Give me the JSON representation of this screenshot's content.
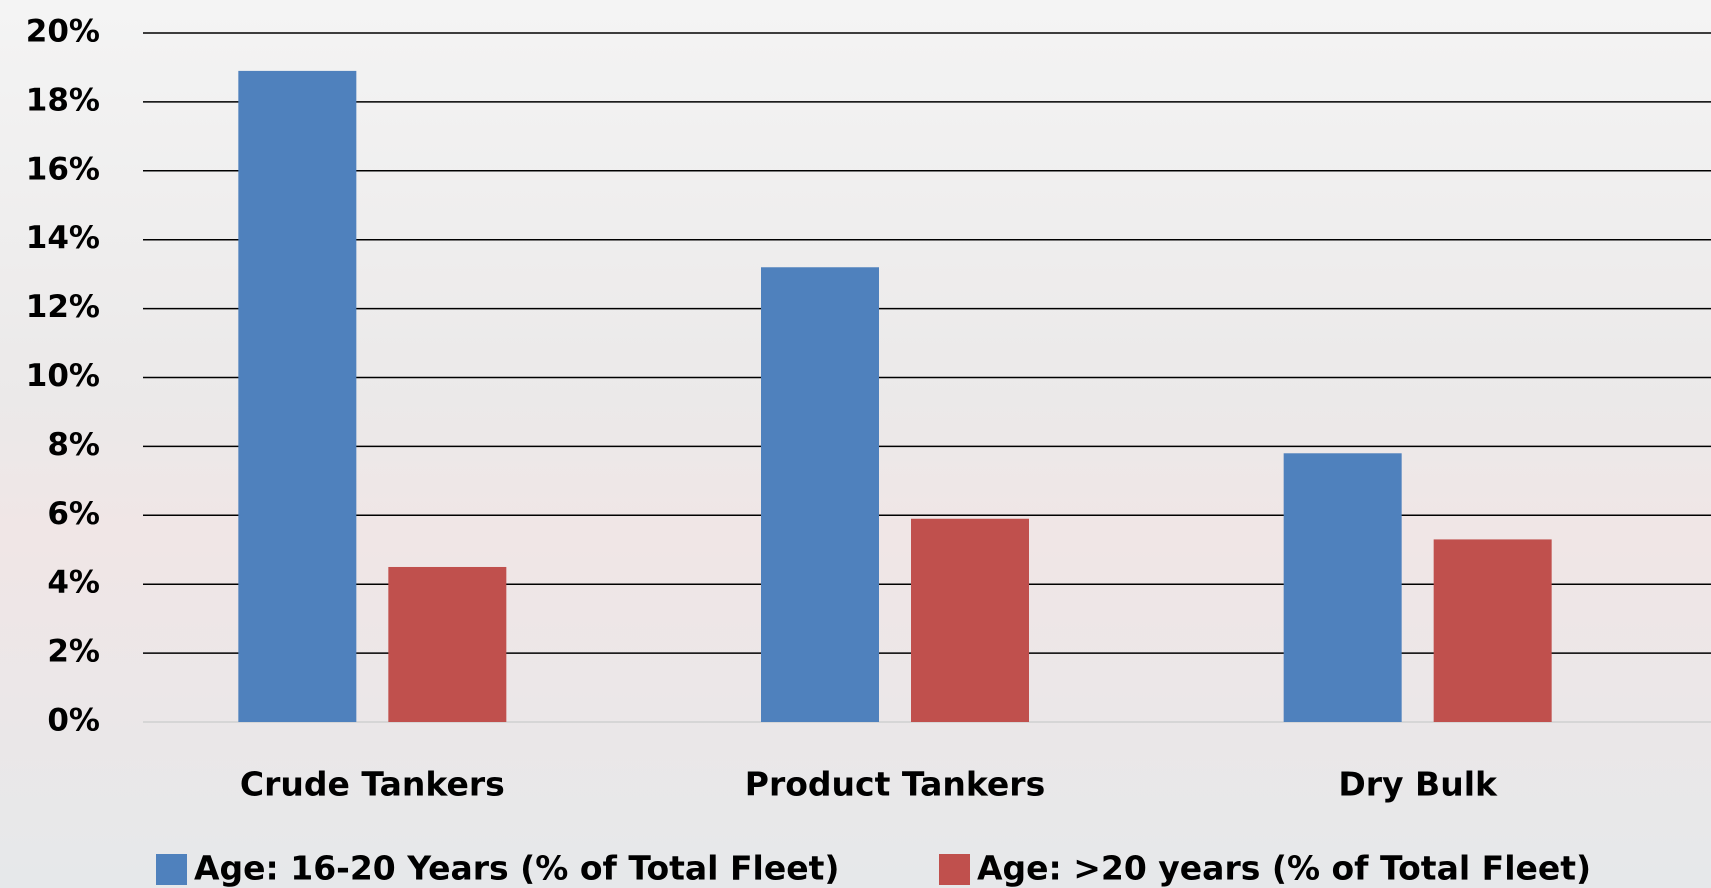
{
  "chart_data": {
    "type": "bar",
    "categories": [
      "Crude Tankers",
      "Product Tankers",
      "Dry Bulk"
    ],
    "series": [
      {
        "name": "Age: 16-20 Years (% of Total Fleet)",
        "color": "#4f81bd",
        "values": [
          18.9,
          13.2,
          7.8
        ]
      },
      {
        "name": "Age: >20 years (% of Total Fleet)",
        "color": "#c0504d",
        "values": [
          4.5,
          5.9,
          5.3
        ]
      }
    ],
    "ylim": [
      0,
      20
    ],
    "yticks": [
      {
        "value": 0,
        "label": "0%"
      },
      {
        "value": 2,
        "label": "2%"
      },
      {
        "value": 4,
        "label": "4%"
      },
      {
        "value": 6,
        "label": "6%"
      },
      {
        "value": 8,
        "label": "8%"
      },
      {
        "value": 10,
        "label": "10%"
      },
      {
        "value": 12,
        "label": "12%"
      },
      {
        "value": 14,
        "label": "14%"
      },
      {
        "value": 16,
        "label": "16%"
      },
      {
        "value": 18,
        "label": "18%"
      },
      {
        "value": 20,
        "label": "20%"
      }
    ],
    "grid": true
  }
}
